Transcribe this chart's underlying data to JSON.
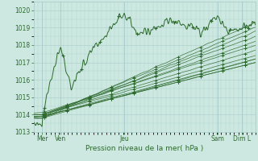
{
  "title": "",
  "xlabel": "Pression niveau de la mer( hPa )",
  "ylabel": "",
  "ylim": [
    1013,
    1020.5
  ],
  "xlim": [
    0,
    130
  ],
  "yticks": [
    1013,
    1014,
    1015,
    1016,
    1017,
    1018,
    1019,
    1020
  ],
  "bg_color": "#cce8e0",
  "grid_color": "#aacccc",
  "line_color": "#2d6a2d",
  "figsize": [
    3.2,
    2.0
  ],
  "dpi": 100,
  "xtick_positions": [
    5,
    16,
    53,
    108,
    122
  ],
  "xtick_labels": [
    "Mer",
    "Ven",
    "Jeu",
    "Sam",
    "Dim L"
  ]
}
